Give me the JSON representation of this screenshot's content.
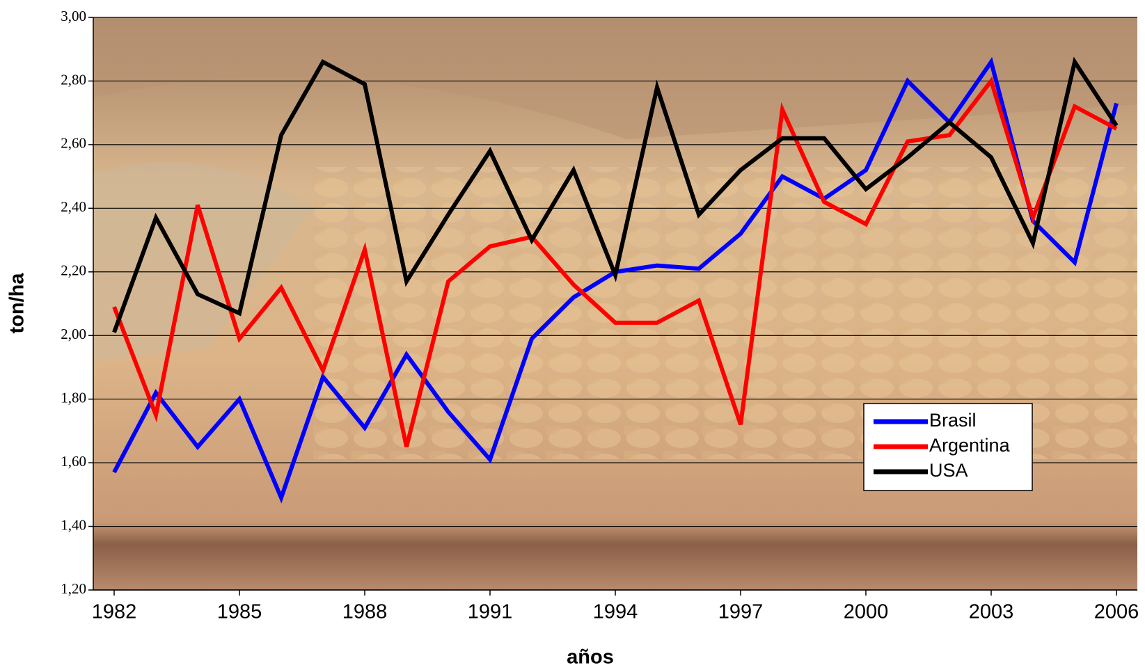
{
  "chart_data": {
    "type": "line",
    "y_label": "ton/ha",
    "x_label": "años",
    "x": [
      1982,
      1983,
      1984,
      1985,
      1986,
      1987,
      1988,
      1989,
      1990,
      1991,
      1992,
      1993,
      1994,
      1995,
      1996,
      1997,
      1998,
      1999,
      2000,
      2001,
      2002,
      2003,
      2004,
      2005,
      2006
    ],
    "xlim": [
      1981.5,
      2006.5
    ],
    "xticks": [
      1982,
      1985,
      1988,
      1991,
      1994,
      1997,
      2000,
      2003,
      2006
    ],
    "ylim": [
      1.2,
      3.0
    ],
    "yticks": [
      {
        "value": 1.2,
        "label": "1,20"
      },
      {
        "value": 1.4,
        "label": "1,40"
      },
      {
        "value": 1.6,
        "label": "1,60"
      },
      {
        "value": 1.8,
        "label": "1,80"
      },
      {
        "value": 2.0,
        "label": "2,00"
      },
      {
        "value": 2.2,
        "label": "2,20"
      },
      {
        "value": 2.4,
        "label": "2,40"
      },
      {
        "value": 2.6,
        "label": "2,60"
      },
      {
        "value": 2.8,
        "label": "2,80"
      },
      {
        "value": 3.0,
        "label": "3,00"
      }
    ],
    "grid": true,
    "legend": "lower right",
    "series": [
      {
        "name": "Brasil",
        "color": "#0000ff",
        "values": [
          1.57,
          1.82,
          1.65,
          1.8,
          1.49,
          1.87,
          1.71,
          1.94,
          1.76,
          1.61,
          1.99,
          2.12,
          2.2,
          2.22,
          2.21,
          2.32,
          2.5,
          2.43,
          2.52,
          2.8,
          2.67,
          2.86,
          2.36,
          2.23,
          2.73
        ]
      },
      {
        "name": "Argentina",
        "color": "#ff0000",
        "values": [
          2.09,
          1.75,
          2.41,
          1.99,
          2.15,
          1.89,
          2.27,
          1.65,
          2.17,
          2.28,
          2.31,
          2.16,
          2.04,
          2.04,
          2.11,
          1.72,
          2.71,
          2.42,
          2.35,
          2.61,
          2.63,
          2.8,
          2.37,
          2.72,
          2.65
        ]
      },
      {
        "name": "USA",
        "color": "#000000",
        "values": [
          2.01,
          2.37,
          2.13,
          2.07,
          2.63,
          2.86,
          2.79,
          2.17,
          2.38,
          2.58,
          2.3,
          2.52,
          2.19,
          2.78,
          2.38,
          2.52,
          2.62,
          2.62,
          2.46,
          2.56,
          2.67,
          2.56,
          2.29,
          2.86,
          2.66
        ]
      }
    ]
  }
}
